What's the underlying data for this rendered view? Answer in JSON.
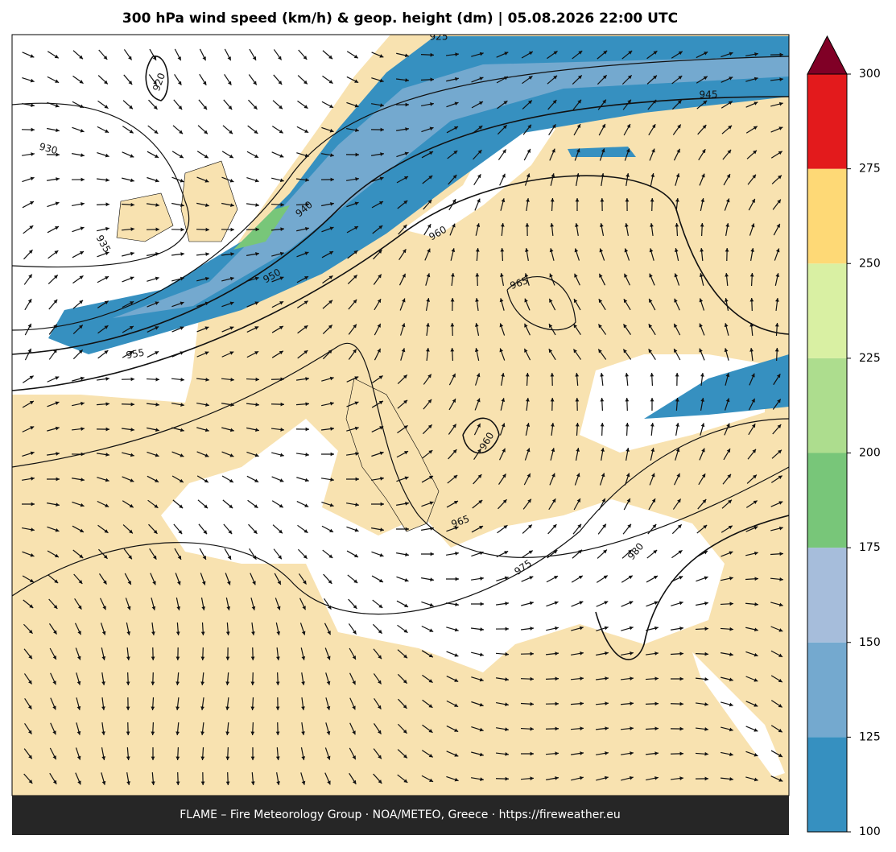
{
  "title": "300 hPa wind speed (km/h) & geop. height (dm)  |  05.08.2026 22:00 UTC",
  "footer": "FLAME – Fire Meteorology Group · NOA/METEO, Greece · https://fireweather.eu",
  "contour_labels": [
    925,
    920,
    930,
    935,
    940,
    945,
    950,
    955,
    960,
    965,
    960,
    965,
    975,
    980
  ],
  "colorbar": {
    "ticks": [
      100,
      125,
      150,
      175,
      200,
      225,
      250,
      275,
      300
    ],
    "colors": [
      "#3690c0",
      "#74a9cf",
      "#a6bddb",
      "#78c679",
      "#addd8e",
      "#d9f0a3",
      "#fed976",
      "#e31a1c",
      "#800026"
    ],
    "extend": "max"
  }
}
